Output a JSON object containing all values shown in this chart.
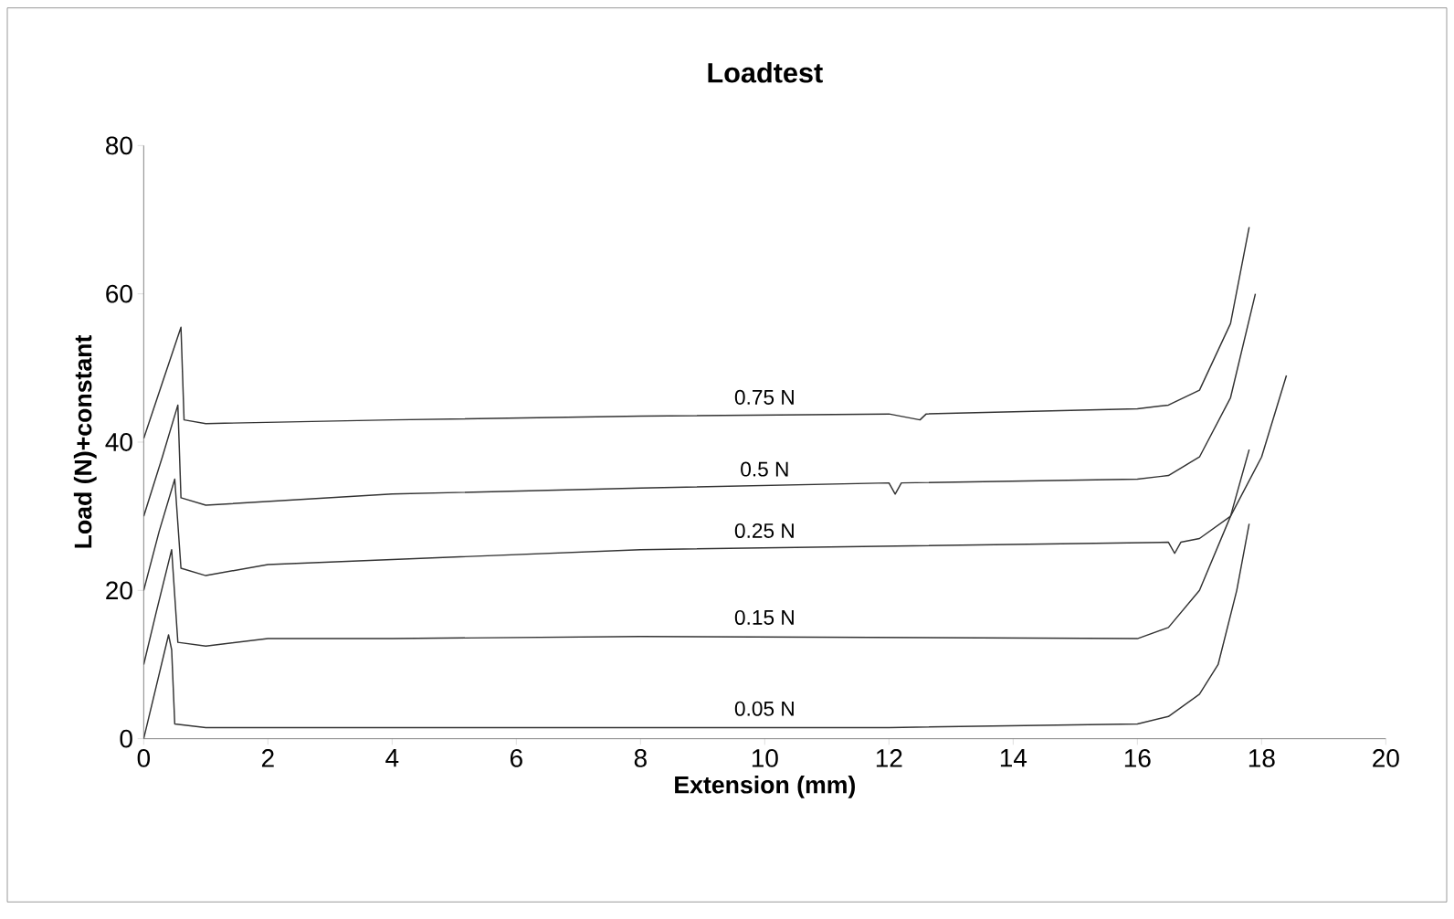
{
  "chart_data": {
    "type": "line",
    "title": "Loadtest",
    "xlabel": "Extension (mm)",
    "ylabel": "Load (N)+constant",
    "xlim": [
      0,
      20
    ],
    "xticks": [
      0,
      2,
      4,
      6,
      8,
      10,
      12,
      14,
      16,
      18,
      20
    ],
    "ylim": [
      0,
      80
    ],
    "yticks": [
      0,
      20,
      40,
      60,
      80
    ],
    "grid": false,
    "legend": false,
    "marker": "none",
    "line_style": "solid",
    "series": [
      {
        "name": "0.75 N",
        "color": "#333333",
        "x": [
          0,
          0.3,
          0.6,
          0.65,
          1,
          4,
          8,
          12,
          12.5,
          12.6,
          16,
          16.5,
          17,
          17.5,
          17.8
        ],
        "values": [
          40.5,
          48,
          55.5,
          43,
          42.5,
          43,
          43.5,
          43.8,
          43,
          43.8,
          44.5,
          45,
          47,
          56,
          69
        ]
      },
      {
        "name": "0.5 N",
        "color": "#333333",
        "x": [
          0,
          0.3,
          0.55,
          0.6,
          1,
          4,
          8,
          12,
          12.1,
          12.2,
          16,
          16.5,
          17,
          17.5,
          17.9
        ],
        "values": [
          30,
          38,
          45,
          32.5,
          31.5,
          33,
          33.8,
          34.5,
          33,
          34.5,
          35,
          35.5,
          38,
          46,
          60
        ]
      },
      {
        "name": "0.25 N",
        "color": "#333333",
        "x": [
          0,
          0.25,
          0.5,
          0.6,
          1,
          2,
          8,
          16.5,
          16.6,
          16.7,
          17,
          17.5,
          18,
          18.4
        ],
        "values": [
          20,
          28,
          35,
          23,
          22,
          23.5,
          25.5,
          26.5,
          25,
          26.5,
          27,
          30,
          38,
          49
        ]
      },
      {
        "name": "0.15 N",
        "color": "#333333",
        "x": [
          0,
          0.2,
          0.45,
          0.55,
          1,
          2,
          4,
          8,
          16,
          16.5,
          17,
          17.5,
          17.8
        ],
        "values": [
          10,
          17,
          25.5,
          13,
          12.5,
          13.5,
          13.5,
          13.8,
          13.5,
          15,
          20,
          30,
          39
        ]
      },
      {
        "name": "0.05 N",
        "color": "#333333",
        "x": [
          0,
          0.2,
          0.4,
          0.45,
          0.5,
          1,
          4,
          8,
          12,
          16,
          16.5,
          17,
          17.3,
          17.6,
          17.8
        ],
        "values": [
          0,
          7,
          14,
          12,
          2,
          1.5,
          1.5,
          1.5,
          1.5,
          2,
          3,
          6,
          10,
          20,
          29
        ]
      }
    ]
  }
}
